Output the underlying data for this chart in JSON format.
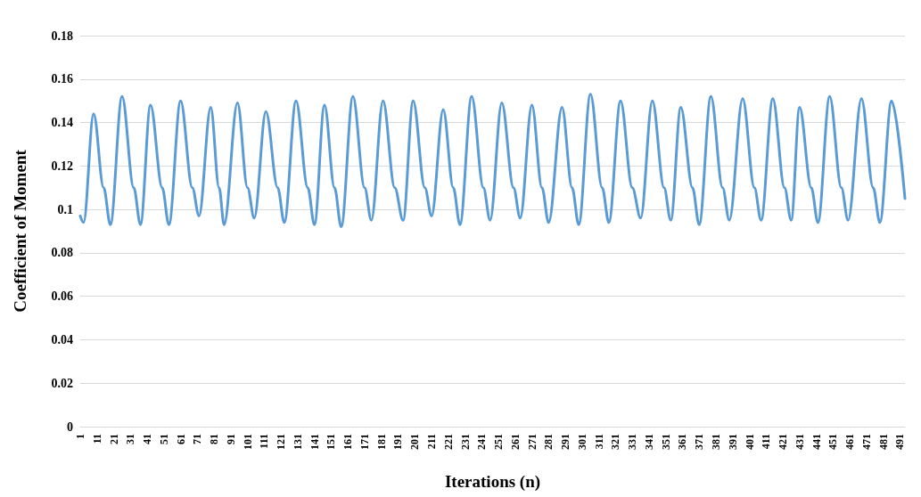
{
  "chart_data": {
    "type": "line",
    "xlabel": "Iterations (n)",
    "ylabel": "Coefficient of Moment",
    "series": [
      {
        "color": "#5b9bd5",
        "x": [
          1,
          3,
          9,
          15,
          19,
          26,
          33,
          37,
          43,
          50,
          54,
          61,
          68,
          72,
          79,
          84,
          87,
          95,
          101,
          105,
          112,
          119,
          123,
          130,
          137,
          141,
          147,
          153,
          157,
          164,
          171,
          175,
          182,
          189,
          194,
          200,
          207,
          211,
          218,
          224,
          228,
          235,
          242,
          246,
          253,
          260,
          264,
          271,
          277,
          281,
          289,
          295,
          299,
          306,
          313,
          317,
          324,
          331,
          336,
          343,
          350,
          354,
          360,
          367,
          371,
          378,
          385,
          389,
          397,
          404,
          408,
          415,
          422,
          426,
          431,
          438,
          442,
          449,
          456,
          460,
          468,
          475,
          479,
          486,
          494
        ],
        "values": [
          0.097,
          0.094,
          0.144,
          0.11,
          0.093,
          0.152,
          0.11,
          0.093,
          0.148,
          0.11,
          0.093,
          0.15,
          0.11,
          0.097,
          0.147,
          0.11,
          0.093,
          0.149,
          0.11,
          0.096,
          0.145,
          0.11,
          0.094,
          0.15,
          0.11,
          0.093,
          0.148,
          0.11,
          0.092,
          0.152,
          0.11,
          0.095,
          0.15,
          0.11,
          0.095,
          0.15,
          0.11,
          0.097,
          0.146,
          0.11,
          0.093,
          0.152,
          0.11,
          0.095,
          0.149,
          0.11,
          0.096,
          0.148,
          0.11,
          0.094,
          0.147,
          0.11,
          0.093,
          0.153,
          0.11,
          0.094,
          0.15,
          0.11,
          0.096,
          0.15,
          0.11,
          0.095,
          0.147,
          0.11,
          0.093,
          0.152,
          0.11,
          0.095,
          0.151,
          0.11,
          0.095,
          0.151,
          0.11,
          0.095,
          0.147,
          0.11,
          0.094,
          0.152,
          0.11,
          0.095,
          0.151,
          0.11,
          0.094,
          0.15,
          0.105
        ]
      }
    ],
    "xlim": [
      1,
      494
    ],
    "xticks": [
      1,
      11,
      21,
      31,
      41,
      51,
      61,
      71,
      81,
      91,
      101,
      111,
      121,
      131,
      141,
      151,
      161,
      171,
      181,
      191,
      201,
      211,
      221,
      231,
      241,
      251,
      261,
      271,
      281,
      291,
      301,
      311,
      321,
      331,
      341,
      351,
      361,
      371,
      381,
      391,
      401,
      411,
      421,
      431,
      441,
      451,
      461,
      471,
      481,
      491
    ],
    "ylim": [
      0,
      0.18
    ],
    "yticks": [
      0,
      0.02,
      0.04,
      0.06,
      0.08,
      0.1,
      0.12,
      0.14,
      0.16,
      0.18
    ],
    "grid": "y",
    "marker": "none",
    "line_style": "solid"
  }
}
